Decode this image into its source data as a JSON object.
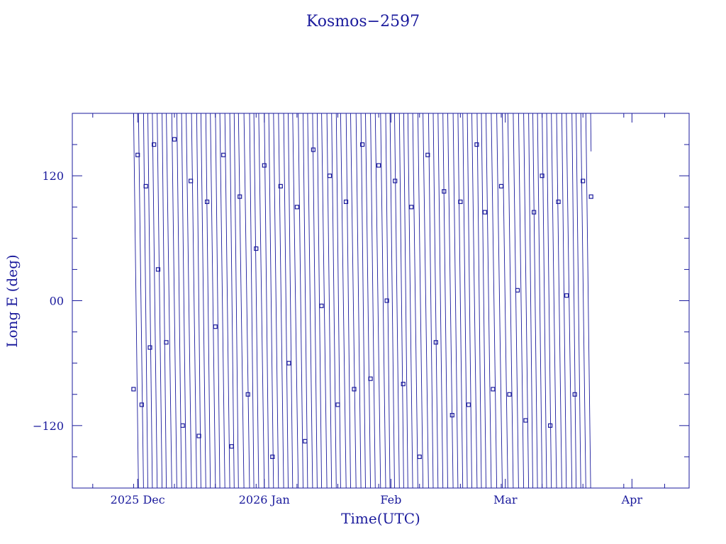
{
  "chart_data": {
    "type": "scatter",
    "title": "Kosmos−2597",
    "xlabel": "Time(UTC)",
    "ylabel": "Long E (deg)",
    "xlim": [
      "2025-11-15",
      "2026-04-15"
    ],
    "ylim": [
      -180,
      180
    ],
    "x_ticks": [
      {
        "date": "2025-12-01",
        "label": "2025 Dec"
      },
      {
        "date": "2026-01-01",
        "label": "2026 Jan"
      },
      {
        "date": "2026-02-01",
        "label": "Feb"
      },
      {
        "date": "2026-03-01",
        "label": "Mar"
      },
      {
        "date": "2026-04-01",
        "label": "Apr"
      }
    ],
    "y_ticks": [
      {
        "value": -120,
        "label": "−120"
      },
      {
        "value": 0,
        "label": "00"
      },
      {
        "value": 120,
        "label": "120"
      }
    ],
    "grid": false,
    "series": [
      {
        "data_start": "2025-11-30",
        "data_end": "2026-03-22",
        "points": [
          [
            "2025-11-30",
            -85
          ],
          [
            "2025-12-01",
            140
          ],
          [
            "2025-12-02",
            -100
          ],
          [
            "2025-12-03",
            110
          ],
          [
            "2025-12-04",
            -45
          ],
          [
            "2025-12-05",
            150
          ],
          [
            "2025-12-06",
            30
          ],
          [
            "2025-12-08",
            -40
          ],
          [
            "2025-12-10",
            155
          ],
          [
            "2025-12-12",
            -120
          ],
          [
            "2025-12-14",
            115
          ],
          [
            "2025-12-16",
            -130
          ],
          [
            "2025-12-18",
            95
          ],
          [
            "2025-12-20",
            -25
          ],
          [
            "2025-12-22",
            140
          ],
          [
            "2025-12-24",
            -140
          ],
          [
            "2025-12-26",
            100
          ],
          [
            "2025-12-28",
            -90
          ],
          [
            "2025-12-30",
            50
          ],
          [
            "2026-01-01",
            130
          ],
          [
            "2026-01-03",
            -150
          ],
          [
            "2026-01-05",
            110
          ],
          [
            "2026-01-07",
            -60
          ],
          [
            "2026-01-09",
            90
          ],
          [
            "2026-01-11",
            -135
          ],
          [
            "2026-01-13",
            145
          ],
          [
            "2026-01-15",
            -5
          ],
          [
            "2026-01-17",
            120
          ],
          [
            "2026-01-19",
            -100
          ],
          [
            "2026-01-21",
            95
          ],
          [
            "2026-01-23",
            -85
          ],
          [
            "2026-01-25",
            150
          ],
          [
            "2026-01-27",
            -75
          ],
          [
            "2026-01-29",
            130
          ],
          [
            "2026-01-31",
            0
          ],
          [
            "2026-02-02",
            115
          ],
          [
            "2026-02-04",
            -80
          ],
          [
            "2026-02-06",
            90
          ],
          [
            "2026-02-08",
            -150
          ],
          [
            "2026-02-10",
            140
          ],
          [
            "2026-02-12",
            -40
          ],
          [
            "2026-02-14",
            105
          ],
          [
            "2026-02-16",
            -110
          ],
          [
            "2026-02-18",
            95
          ],
          [
            "2026-02-20",
            -100
          ],
          [
            "2026-02-22",
            150
          ],
          [
            "2026-02-24",
            85
          ],
          [
            "2026-02-26",
            -85
          ],
          [
            "2026-02-28",
            110
          ],
          [
            "2026-03-02",
            -90
          ],
          [
            "2026-03-04",
            10
          ],
          [
            "2026-03-06",
            -115
          ],
          [
            "2026-03-08",
            85
          ],
          [
            "2026-03-10",
            120
          ],
          [
            "2026-03-12",
            -120
          ],
          [
            "2026-03-14",
            95
          ],
          [
            "2026-03-16",
            5
          ],
          [
            "2026-03-18",
            -90
          ],
          [
            "2026-03-20",
            115
          ],
          [
            "2026-03-22",
            100
          ]
        ]
      }
    ],
    "note_on_values": "longitudes wrap across ±180° with ~1.2 day period; marks shown are approximate samples"
  },
  "colors": {
    "plot": "#1a1a9c",
    "background": "#ffffff"
  }
}
